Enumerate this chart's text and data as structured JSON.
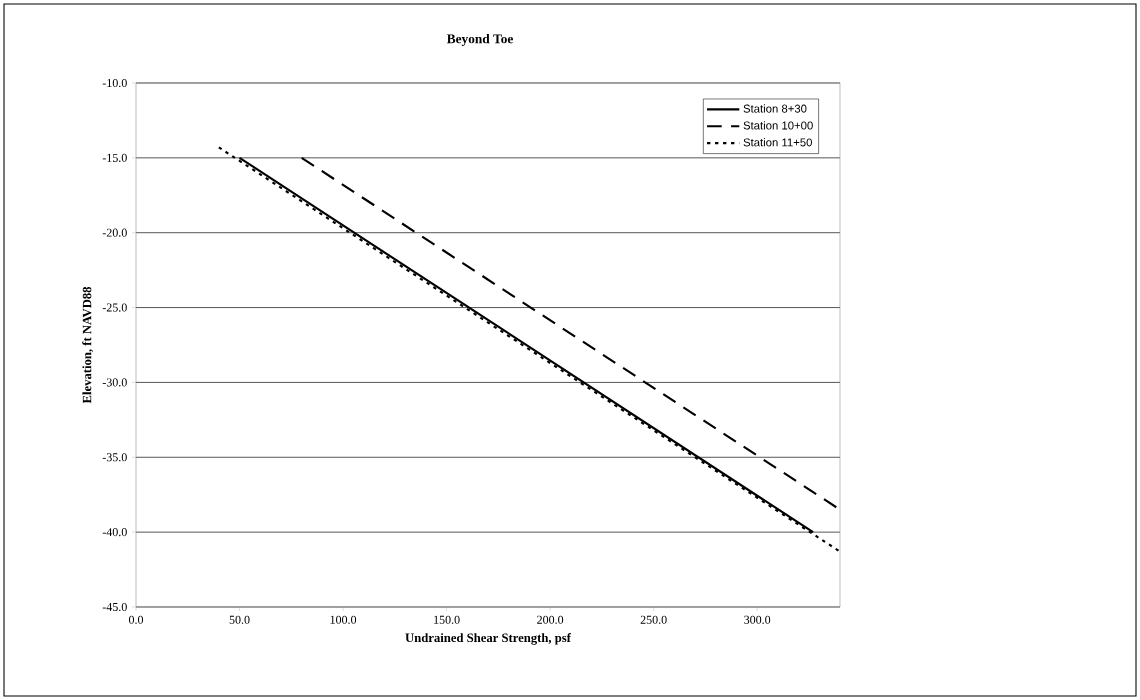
{
  "chart_data": {
    "type": "line",
    "title": "Beyond Toe",
    "xlabel": "Undrained Shear Strength, psf",
    "ylabel": "Elevation, ft NAVD88",
    "series": [
      {
        "name": "Station 8+30",
        "color": "#000000",
        "line_style": "solid",
        "x": [
          50,
          327
        ],
        "values": [
          -15,
          -40
        ]
      },
      {
        "name": "Station 10+00",
        "color": "#000000",
        "line_style": "dashed",
        "x": [
          80,
          340
        ],
        "values": [
          -15,
          -38.5
        ]
      },
      {
        "name": "Station 11+50",
        "color": "#000000",
        "line_style": "dotted",
        "x": [
          40,
          340
        ],
        "values": [
          -14.3,
          -41.3
        ]
      }
    ],
    "xlim": [
      0,
      340
    ],
    "xticks": [
      {
        "value": 0,
        "label": "0.0"
      },
      {
        "value": 50,
        "label": "50.0"
      },
      {
        "value": 100,
        "label": "100.0"
      },
      {
        "value": 150,
        "label": "150.0"
      },
      {
        "value": 200,
        "label": "200.0"
      },
      {
        "value": 250,
        "label": "250.0"
      },
      {
        "value": 300,
        "label": "300.0"
      }
    ],
    "ylim": [
      -45,
      -10
    ],
    "yticks": [
      {
        "value": -45,
        "label": "-45.0"
      },
      {
        "value": -40,
        "label": "-40.0"
      },
      {
        "value": -35,
        "label": "-35.0"
      },
      {
        "value": -30,
        "label": "-30.0"
      },
      {
        "value": -25,
        "label": "-25.0"
      },
      {
        "value": -20,
        "label": "-20.0"
      },
      {
        "value": -15,
        "label": "-15.0"
      },
      {
        "value": -10,
        "label": "-10.0"
      }
    ],
    "grid": "y",
    "legend": "top right"
  }
}
